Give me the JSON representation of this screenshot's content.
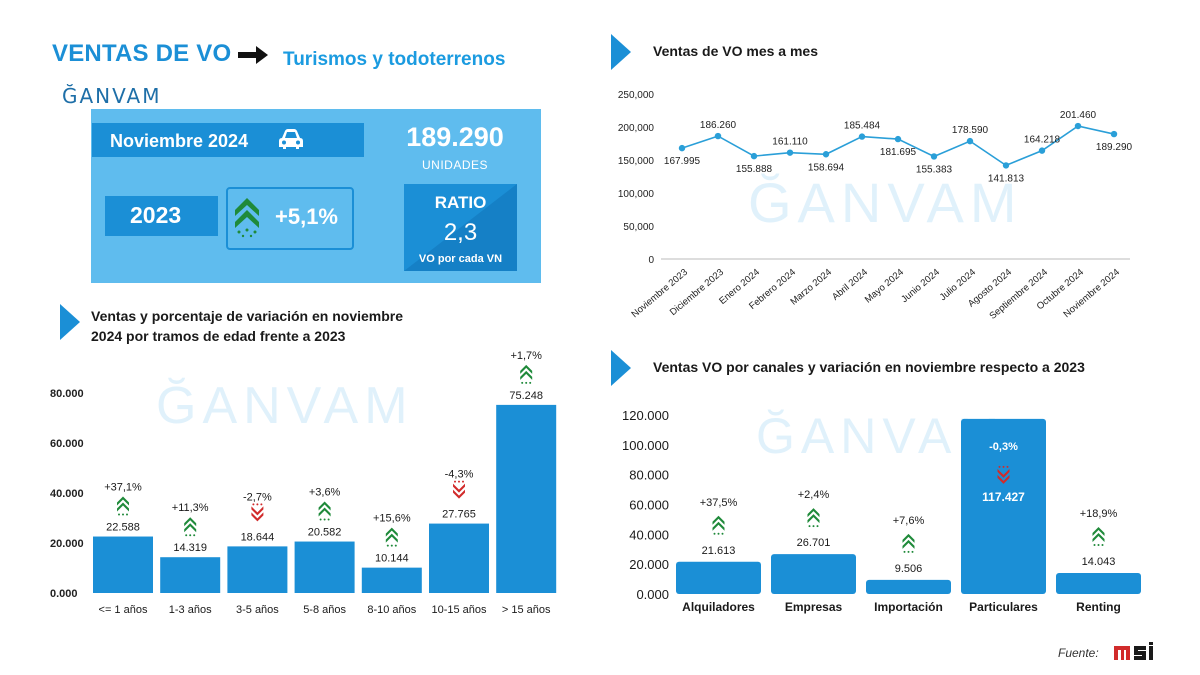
{
  "header": {
    "title": "VENTAS DE VO",
    "subtitle": "Turismos y todoterrenos",
    "logo_text": "ĞANVAM",
    "arrow_icon": "arrow-right-icon"
  },
  "kpi": {
    "month": "Noviembre 2024",
    "units": "189.290",
    "units_label": "UNIDADES",
    "comparison_year": "2023",
    "variation": "+5,1%",
    "ratio_title": "RATIO",
    "ratio_value": "2,3",
    "ratio_label": "VO por cada VN",
    "car_icon": "car-icon",
    "trend_icon": "trend-up-icon"
  },
  "sections": {
    "monthly_title": "Ventas de VO mes a mes",
    "age_title_line1": "Ventas y porcentaje de variación en noviembre",
    "age_title_line2": "2024 por tramos de edad frente a 2023",
    "channels_title": "Ventas VO por canales y variación en noviembre respecto a 2023"
  },
  "watermark": "ĞANVAM",
  "footer": {
    "source_label": "Fuente:",
    "source_logo": "msi"
  },
  "colors": {
    "primary": "#1b8fd6",
    "light_panel": "#5fbcee",
    "line": "#2a9fd8",
    "up": "#1f8a3a",
    "down": "#d12b2b"
  },
  "chart_data": [
    {
      "type": "line",
      "title": "Ventas de VO mes a mes",
      "x": [
        "Noviembre 2023",
        "Diciembre 2023",
        "Enero 2024",
        "Febrero 2024",
        "Marzo 2024",
        "Abril 2024",
        "Mayo 2024",
        "Junio 2024",
        "Julio 2024",
        "Agosto 2024",
        "Septiembre 2024",
        "Octubre 2024",
        "Noviembre 2024"
      ],
      "values": [
        167995,
        186260,
        155888,
        161110,
        158694,
        185484,
        181695,
        155383,
        178590,
        141813,
        164218,
        201460,
        189290
      ],
      "labels": [
        "167.995",
        "186.260",
        "155.888",
        "161.110",
        "158.694",
        "185.484",
        "181.695",
        "155.383",
        "178.590",
        "141.813",
        "164.218",
        "201.460",
        "189.290"
      ],
      "ylim": [
        0,
        250000
      ],
      "yticks": [
        "0",
        "50,000",
        "100,000",
        "150,000",
        "200,000",
        "250,000"
      ],
      "grid": false
    },
    {
      "type": "bar",
      "title": "Ventas y porcentaje de variación en noviembre 2024 por tramos de edad frente a 2023",
      "categories": [
        "<= 1 años",
        "1-3 años",
        "3-5 años",
        "5-8 años",
        "8-10 años",
        "10-15 años",
        "> 15 años"
      ],
      "values": [
        22588,
        14319,
        18644,
        20582,
        10144,
        27765,
        75248
      ],
      "labels": [
        "22.588",
        "14.319",
        "18.644",
        "20.582",
        "10.144",
        "27.765",
        "75.248"
      ],
      "variation": [
        "+37,1%",
        "+11,3%",
        "-2,7%",
        "+3,6%",
        "+15,6%",
        "-4,3%",
        "+1,7%"
      ],
      "direction": [
        "up",
        "up",
        "down",
        "up",
        "up",
        "down",
        "up"
      ],
      "ylim": [
        0,
        80000
      ],
      "yticks": [
        "0.000",
        "20.000",
        "40.000",
        "60.000",
        "80.000"
      ]
    },
    {
      "type": "bar",
      "title": "Ventas VO por canales y variación en noviembre respecto a 2023",
      "categories": [
        "Alquiladores",
        "Empresas",
        "Importación",
        "Particulares",
        "Renting"
      ],
      "values": [
        21613,
        26701,
        9506,
        117427,
        14043
      ],
      "labels": [
        "21.613",
        "26.701",
        "9.506",
        "117.427",
        "14.043"
      ],
      "variation": [
        "+37,5%",
        "+2,4%",
        "+7,6%",
        "-0,3%",
        "+18,9%"
      ],
      "direction": [
        "up",
        "up",
        "up",
        "down",
        "up"
      ],
      "ylim": [
        0,
        120000
      ],
      "yticks": [
        "0.000",
        "20.000",
        "40.000",
        "60.000",
        "80.000",
        "100.000",
        "120.000"
      ]
    }
  ]
}
